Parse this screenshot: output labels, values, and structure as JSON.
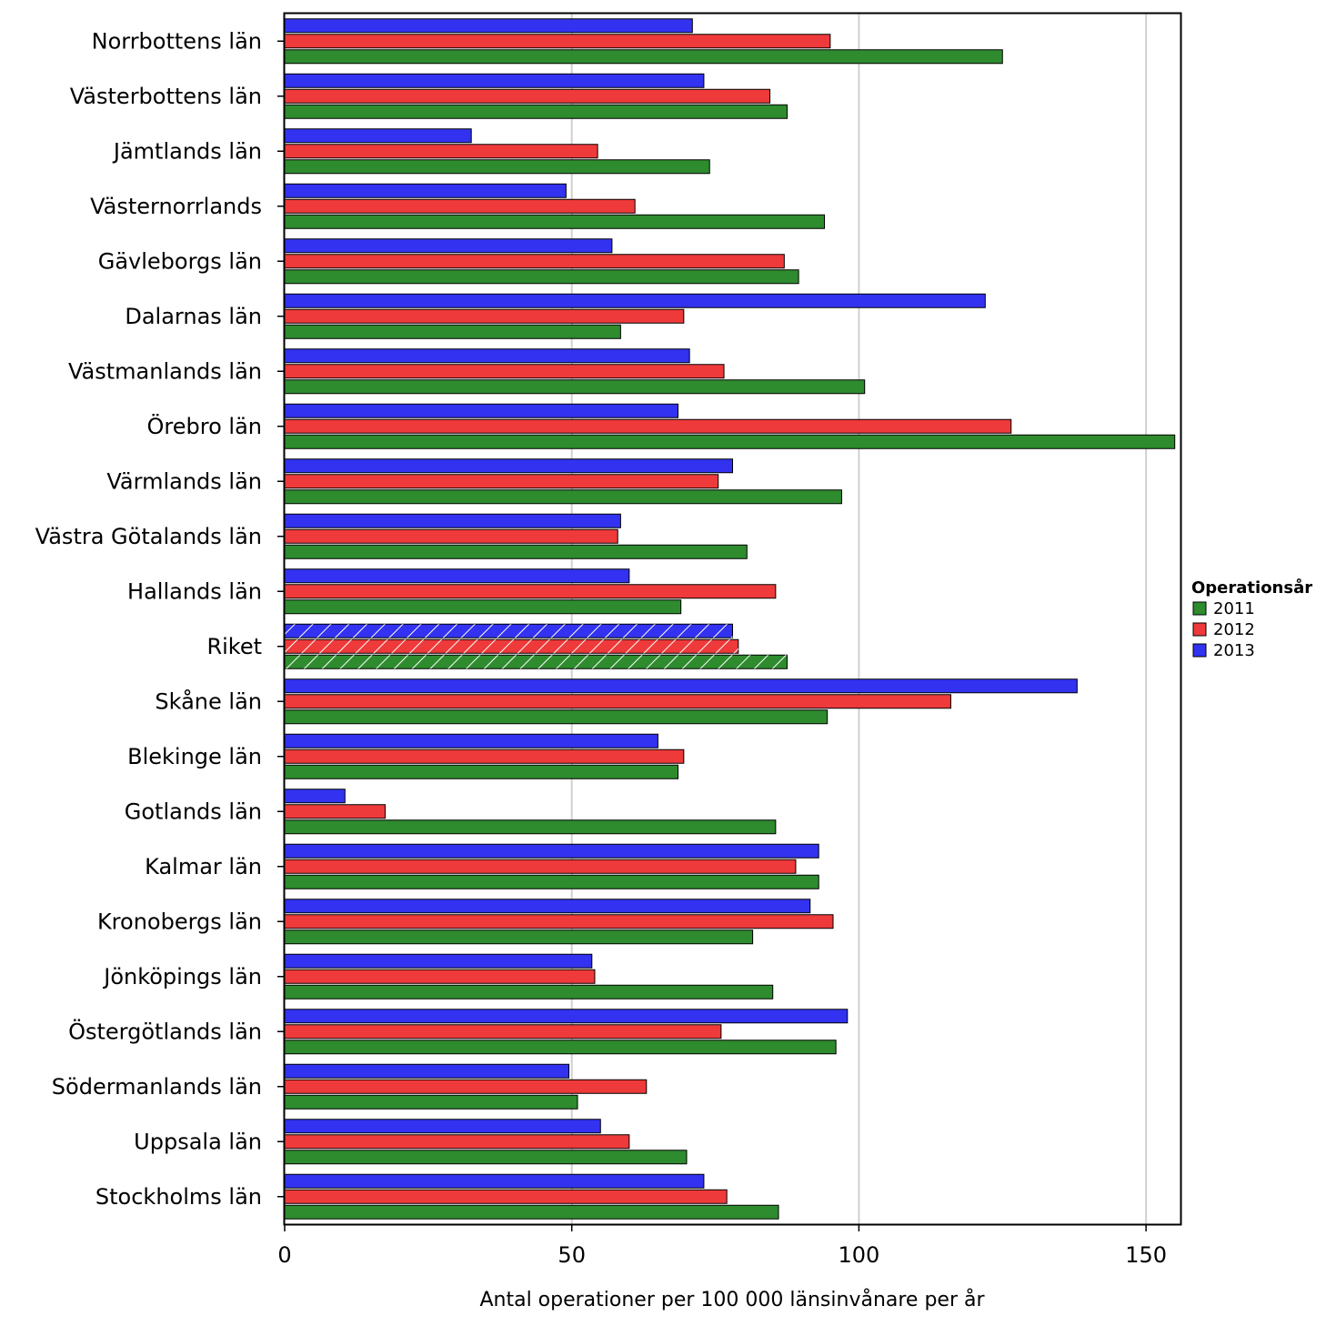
{
  "chart_data": {
    "type": "bar",
    "orientation": "horizontal",
    "xlabel": "Antal operationer per 100 000 länsinvånare per år",
    "ylabel": "",
    "xlim": [
      0,
      156
    ],
    "xticks": [
      0,
      50,
      100,
      150
    ],
    "grid": "vertical",
    "legend": {
      "title": "Operationsår",
      "placement": "right",
      "entries": [
        "2011",
        "2012",
        "2013"
      ]
    },
    "highlighted_category": "Riket",
    "categories": [
      "Norrbottens län",
      "Västerbottens län",
      "Jämtlands län",
      "Västernorrlands",
      "Gävleborgs län",
      "Dalarnas län",
      "Västmanlands län",
      "Örebro län",
      "Värmlands län",
      "Västra Götalands län",
      "Hallands län",
      "Riket",
      "Skåne län",
      "Blekinge län",
      "Gotlands län",
      "Kalmar län",
      "Kronobergs län",
      "Jönköpings län",
      "Östergötlands län",
      "Södermanlands län",
      "Uppsala län",
      "Stockholms län"
    ],
    "series": [
      {
        "name": "2011",
        "color": "#2e8b2e",
        "values": [
          125,
          87.5,
          74,
          94,
          89.5,
          58.5,
          101,
          155,
          97,
          80.5,
          69,
          87.5,
          94.5,
          68.5,
          85.5,
          93,
          81.5,
          85,
          96,
          51,
          70,
          86
        ]
      },
      {
        "name": "2012",
        "color": "#ee3a3a",
        "values": [
          95,
          84.5,
          54.5,
          61,
          87,
          69.5,
          76.5,
          126.5,
          75.5,
          58,
          85.5,
          79,
          116,
          69.5,
          17.5,
          89,
          95.5,
          54,
          76,
          63,
          60,
          77
        ]
      },
      {
        "name": "2013",
        "color": "#3232f0",
        "values": [
          71,
          73,
          32.5,
          49,
          57,
          122,
          70.5,
          68.5,
          78,
          58.5,
          60,
          78,
          138,
          65,
          10.5,
          93,
          91.5,
          53.5,
          98,
          49.5,
          55,
          73
        ]
      }
    ]
  }
}
